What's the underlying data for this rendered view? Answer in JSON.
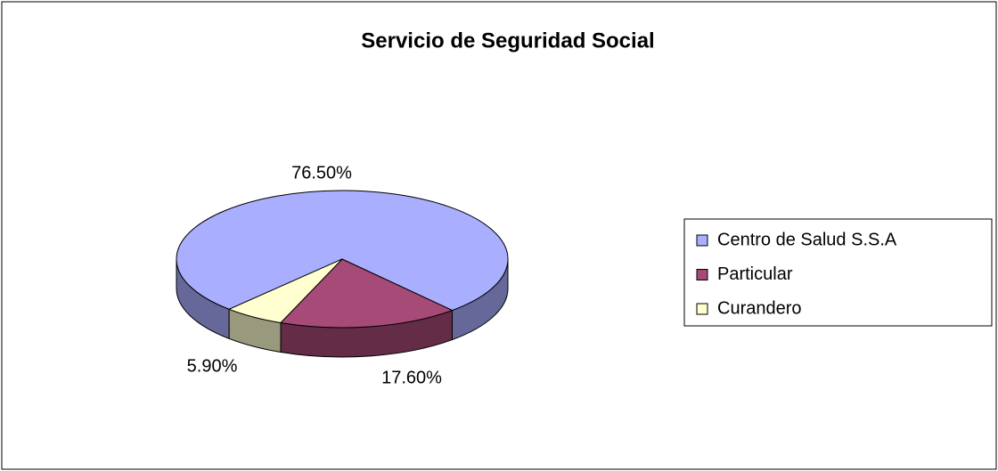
{
  "chart_data": {
    "type": "pie",
    "title": "Servicio de Seguridad Social",
    "categories": [
      "Centro de Salud S.S.A",
      "Particular",
      "Curandero"
    ],
    "values": [
      76.5,
      17.6,
      5.9
    ],
    "value_labels": [
      "76.50%",
      "17.60%",
      "5.90%"
    ],
    "colors": [
      "#A9AEFF",
      "#A64A77",
      "#FFFFD0"
    ],
    "legend": "right"
  }
}
